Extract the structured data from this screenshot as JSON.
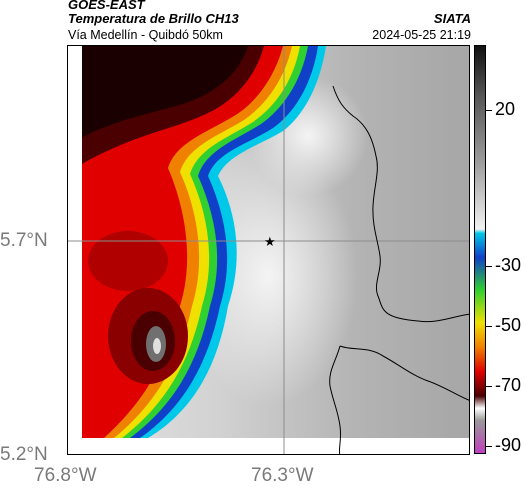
{
  "header": {
    "satellite": "GOES-EAST",
    "product": "Temperatura de Brillo CH13",
    "route": "Vía Medellín - Quibdó 50km",
    "organization": "SIATA",
    "datetime": "2024-05-25 21:19"
  },
  "axes": {
    "lat_labels": [
      "5.7°N",
      "5.2°N"
    ],
    "lon_labels": [
      "76.8°W",
      "76.3°W"
    ],
    "lat_range": [
      5.2,
      6.13
    ],
    "lon_range": [
      -76.8,
      -75.9
    ],
    "gridlines": true
  },
  "colorbar": {
    "ticks": [
      "20",
      "-30",
      "-50",
      "-70",
      "-90"
    ],
    "tick_values": [
      20,
      -30,
      -50,
      -70,
      -90
    ],
    "range": [
      -95,
      40
    ],
    "colors": {
      "cyan": "#00c8e8",
      "blue": "#1040c8",
      "green": "#30d030",
      "yellow": "#f0e000",
      "orange": "#f08000",
      "red": "#e00000",
      "dark_red": "#4a0000",
      "magenta": "#c040c0"
    }
  },
  "marker": {
    "icon": "star-marker-icon",
    "lat": 5.7,
    "lon": -76.34
  }
}
